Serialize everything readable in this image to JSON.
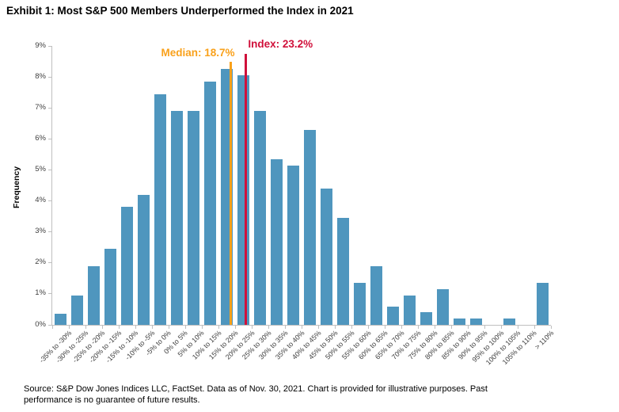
{
  "title": "Exhibit 1: Most S&P 500 Members Underperformed the Index in 2021",
  "chart_data": {
    "type": "bar",
    "title": "Exhibit 1: Most S&P 500 Members Underperformed the Index in 2021",
    "xlabel": "",
    "ylabel": "Frequency",
    "ylim": [
      0,
      9
    ],
    "x_range": [
      -35,
      115
    ],
    "grid": false,
    "legend": false,
    "bar_color": "#4f96be",
    "axis_color": "#bfbfbf",
    "yticks": [
      "0%",
      "1%",
      "2%",
      "3%",
      "4%",
      "5%",
      "6%",
      "7%",
      "8%",
      "9%"
    ],
    "categories": [
      "-35% to -30%",
      "-30% to -25%",
      "-25% to -20%",
      "-20% to -15%",
      "-15% to -10%",
      "-10% to -5%",
      "-5% to 0%",
      "0% to 5%",
      "5% to 10%",
      "10% to 15%",
      "15% to 20%",
      "20% to 25%",
      "25% to 30%",
      "30% to 35%",
      "35% to 40%",
      "40% to 45%",
      "45% to 50%",
      "50% to 55%",
      "55% to 60%",
      "60% to 65%",
      "65% to 70%",
      "70% to 75%",
      "75% to 80%",
      "80% to 85%",
      "85% to 90%",
      "90% to 95%",
      "95% to 100%",
      "100% to 105%",
      "105% to 110%",
      "> 110%"
    ],
    "values": [
      0.35,
      0.95,
      1.9,
      2.45,
      3.8,
      4.2,
      7.45,
      6.9,
      6.9,
      7.85,
      8.25,
      8.05,
      6.9,
      5.35,
      5.15,
      6.3,
      4.4,
      3.45,
      1.35,
      1.9,
      0.6,
      0.95,
      0.4,
      1.15,
      0.2,
      0.2,
      0,
      0.2,
      0,
      1.35
    ],
    "annotations": [
      {
        "label": "Median: 18.7%",
        "value": 18.7,
        "color": "#f9a11b",
        "label_side": "right"
      },
      {
        "label": "Index: 23.2%",
        "value": 23.2,
        "color": "#d0103a",
        "label_side": "left"
      }
    ]
  },
  "footer": {
    "lines": [
      "Source: S&P Dow Jones Indices LLC, FactSet. Data as of Nov. 30, 2021. Chart is provided for illustrative purposes. Past",
      "performance is no guarantee of future results."
    ]
  }
}
